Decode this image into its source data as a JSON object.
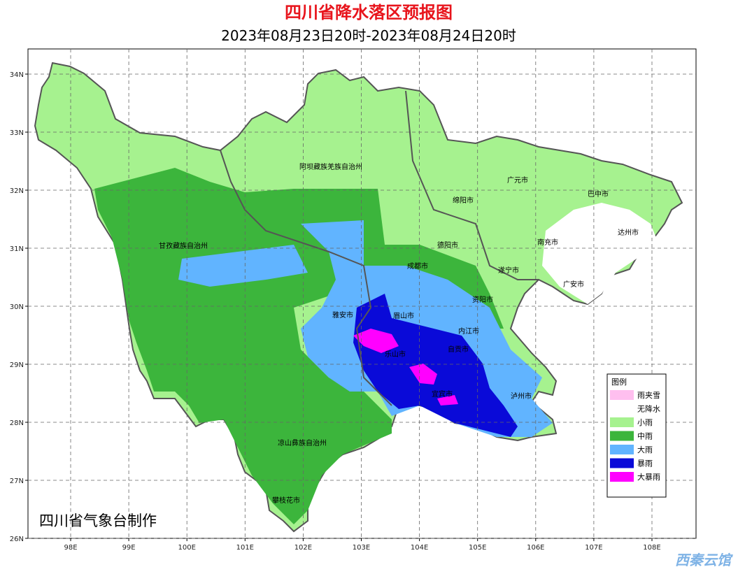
{
  "header": {
    "title": "四川省降水落区预报图",
    "subtitle": "2023年08月23日20时-2023年08月24日20时"
  },
  "axes": {
    "x_ticks": [
      "98E",
      "99E",
      "100E",
      "101E",
      "102E",
      "103E",
      "104E",
      "105E",
      "106E",
      "107E",
      "108E"
    ],
    "y_ticks": [
      "34N",
      "33N",
      "32N",
      "31N",
      "30N",
      "29N",
      "28N",
      "27N",
      "26N"
    ]
  },
  "places": [
    "阿坝藏族羌族自治州",
    "广元市",
    "巴中市",
    "绵阳市",
    "达州市",
    "甘孜藏族自治州",
    "德阳市",
    "南充市",
    "成都市",
    "遂宁市",
    "广安市",
    "资阳市",
    "雅安市",
    "眉山市",
    "内江市",
    "乐山市",
    "自贡市",
    "宜宾市",
    "泸州市",
    "凉山彝族自治州",
    "攀枝花市"
  ],
  "legend": {
    "title": "图例",
    "items": [
      "雨夹雪",
      "无降水",
      "小雨",
      "中雨",
      "大雨",
      "暴雨",
      "大暴雨"
    ]
  },
  "credit": "四川省气象台制作",
  "watermark": "西秦云馆"
}
